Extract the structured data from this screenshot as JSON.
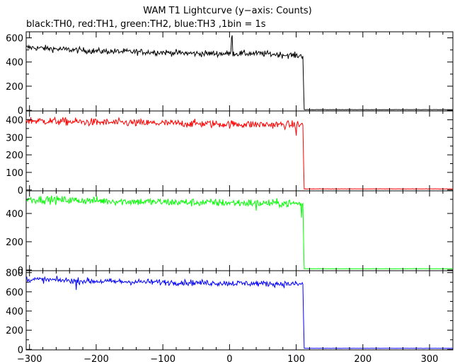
{
  "header": {
    "title": "WAM T1 Lightcurve (y−axis: Counts)",
    "subtitle": "black:TH0, red:TH1, green:TH2, blue:TH3 ,1bin = 1s"
  },
  "chart_data": {
    "type": "line",
    "title": "WAM T1 Lightcurve (y−axis: Counts)",
    "subtitle": "black:TH0, red:TH1, green:TH2, blue:TH3 ,1bin = 1s",
    "xlim": [
      -305,
      335
    ],
    "x_ticks": [
      -300,
      -200,
      -100,
      0,
      100,
      200,
      300
    ],
    "x_tick_labels": [
      "−300",
      "−200",
      "−100",
      "0",
      "100",
      "200",
      "300"
    ],
    "bin_seconds": 1,
    "drop_time": 110,
    "panels": [
      {
        "name": "TH0",
        "color": "#000000",
        "ylim": [
          -5,
          650
        ],
        "y_ticks": [
          0,
          200,
          400,
          600
        ],
        "y_tick_labels": [
          "0",
          "200",
          "400",
          "600"
        ],
        "profile": [
          [
            -300,
            520
          ],
          [
            -200,
            490
          ],
          [
            -100,
            480
          ],
          [
            -50,
            470
          ],
          [
            0,
            470
          ],
          [
            50,
            470
          ],
          [
            110,
            450
          ]
        ],
        "noise": 18,
        "spikes": [
          [
            3,
            600
          ],
          [
            4,
            620
          ]
        ],
        "after_level": 5
      },
      {
        "name": "TH1",
        "color": "#ff0000",
        "ylim": [
          -5,
          450
        ],
        "y_ticks": [
          0,
          100,
          200,
          300,
          400
        ],
        "y_tick_labels": [
          "0",
          "100",
          "200",
          "300",
          "400"
        ],
        "profile": [
          [
            -300,
            395
          ],
          [
            -200,
            385
          ],
          [
            -100,
            380
          ],
          [
            0,
            375
          ],
          [
            110,
            370
          ]
        ],
        "noise": 16,
        "spikes": [
          [
            100,
            310
          ]
        ],
        "after_level": 5
      },
      {
        "name": "TH2",
        "color": "#00ff00",
        "ylim": [
          -5,
          560
        ],
        "y_ticks": [
          0,
          200,
          400
        ],
        "y_tick_labels": [
          "0",
          "200",
          "400"
        ],
        "profile": [
          [
            -300,
            500
          ],
          [
            -200,
            490
          ],
          [
            -100,
            480
          ],
          [
            0,
            475
          ],
          [
            110,
            470
          ]
        ],
        "noise": 20,
        "spikes": [
          [
            40,
            420
          ],
          [
            108,
            370
          ]
        ],
        "after_level": 8
      },
      {
        "name": "TH3",
        "color": "#0000ff",
        "ylim": [
          -5,
          820
        ],
        "y_ticks": [
          0,
          200,
          400,
          600,
          800
        ],
        "y_tick_labels": [
          "0",
          "200",
          "400",
          "600",
          "800"
        ],
        "profile": [
          [
            -300,
            730
          ],
          [
            -200,
            710
          ],
          [
            -100,
            700
          ],
          [
            0,
            690
          ],
          [
            110,
            680
          ]
        ],
        "noise": 22,
        "spikes": [
          [
            -230,
            620
          ]
        ],
        "after_level": 10
      }
    ]
  }
}
